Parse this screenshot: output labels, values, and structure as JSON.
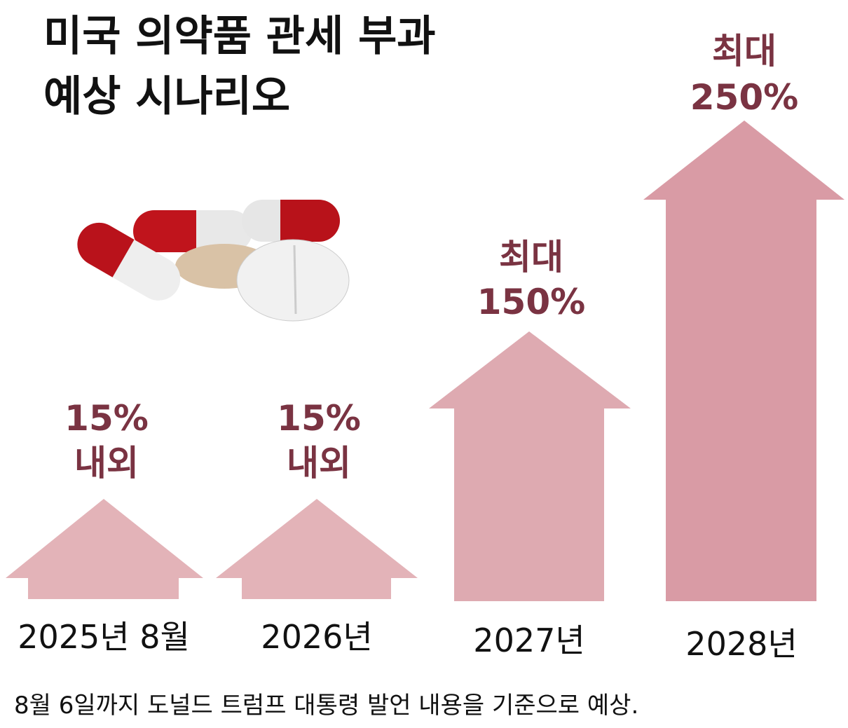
{
  "header": {
    "title_lines": [
      "미국 의약품 관세 부과",
      "예상 시나리오"
    ]
  },
  "scenarios": [
    {
      "period": "2025년 8월",
      "label_lines": [
        "15%",
        "내외"
      ]
    },
    {
      "period": "2026년",
      "label_lines": [
        "15%",
        "내외"
      ]
    },
    {
      "period": "2027년",
      "label_lines": [
        "최대",
        "150%"
      ]
    },
    {
      "period": "2028년",
      "label_lines": [
        "최대",
        "250%"
      ]
    }
  ],
  "footnote": "8월 6일까지 도널드 트럼프 대통령 발언 내용을 기준으로 예상."
}
